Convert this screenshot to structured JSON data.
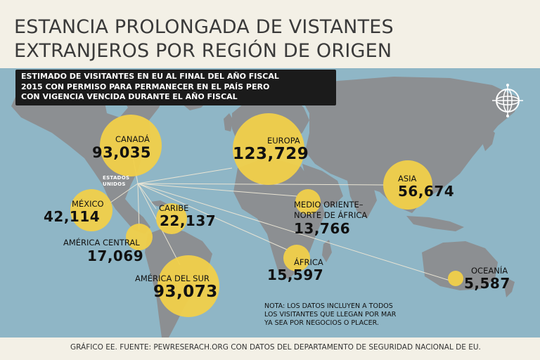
{
  "title": {
    "line1": "ESTANCIA PROLONGADA DE VISTANTES",
    "line2": "EXTRANJEROS POR REGIÓN DE ORIGEN"
  },
  "subtitle": {
    "line1": "ESTIMADO DE VISITANTES EN EU AL FINAL DEL AÑO FISCAL",
    "line2": "2015 CON PERMISO PARA PERMANECER EN EL PAÍS PERO",
    "line3": "CON VIGENCIA VENCIDA DURANTE EL AÑO FISCAL"
  },
  "origin": {
    "line1": "ESTADOS",
    "line2": "UNIDOS"
  },
  "regions": {
    "canada": {
      "name": "CANADÁ",
      "value": "93,035"
    },
    "europa": {
      "name": "EUROPA",
      "value": "123,729"
    },
    "asia": {
      "name": "ASIA",
      "value": "56,674"
    },
    "mexico": {
      "name": "MÉXICO",
      "value": "42,114"
    },
    "caribe": {
      "name": "CARIBE",
      "value": "22,137"
    },
    "medio_oriente": {
      "name_line1": "MEDIO ORIENTE–",
      "name_line2": "NORTE DE ÁFRICA",
      "value": "13,766"
    },
    "america_central": {
      "name": "AMÉRICA CENTRAL",
      "value": "17,069"
    },
    "africa": {
      "name": "ÁFRICA",
      "value": "15,597"
    },
    "oceania": {
      "name": "OCEANÍA",
      "value": "5,587"
    },
    "america_del_sur": {
      "name": "AMÉRICA DEL SUR",
      "value": "93,073"
    }
  },
  "note": {
    "line1": "NOTA: LOS DATOS INCLUYEN A TODOS",
    "line2": "LOS VISITANTES QUE LLEGAN POR MAR",
    "line3": "YA SEA POR NEGOCIOS O PLACER."
  },
  "footer": "GRÁFICO EE. FUENTE: PEWRESERACH.ORG CON DATOS DEL DEPARTAMENTO DE SEGURIDAD NACIONAL DE EU.",
  "colors": {
    "background": "#f3f0e6",
    "ocean": "#8fb6c6",
    "land": "#8c8f92",
    "bubble": "#f1d04a",
    "subtitle_box": "#1b1b1b",
    "connector": "#e9e4d4"
  },
  "icons": [
    "globe-icon"
  ]
}
